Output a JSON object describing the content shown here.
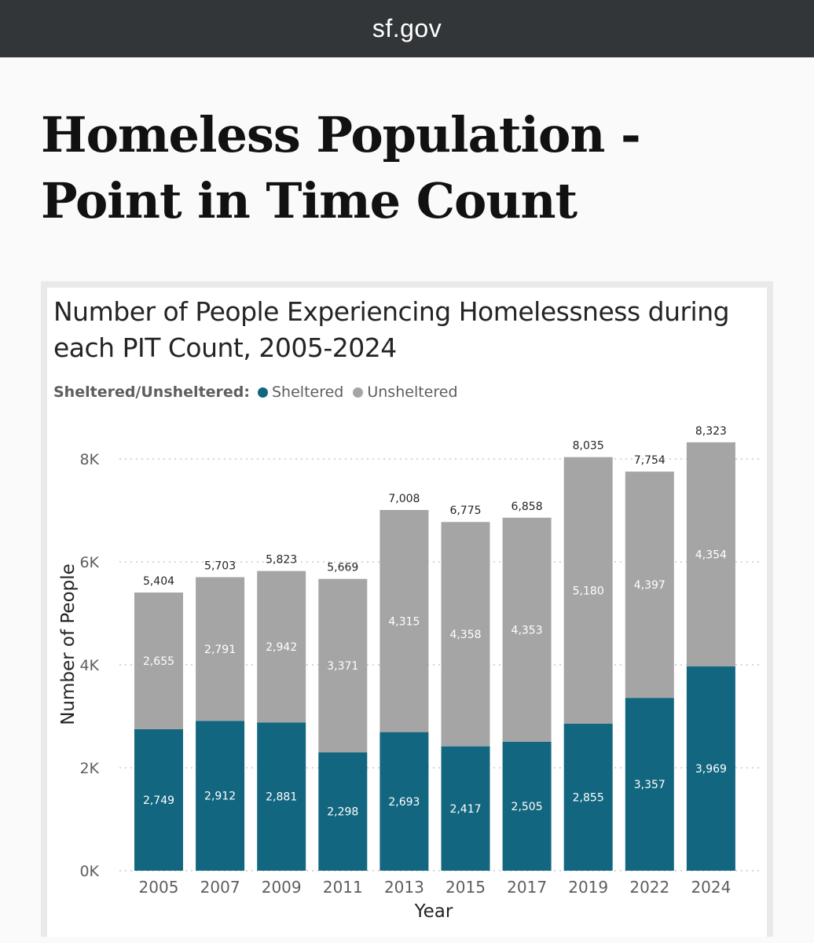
{
  "browser": {
    "url": "sf.gov"
  },
  "page": {
    "title": "Homeless Population - Point in Time Count"
  },
  "legend": {
    "title": "Sheltered/Unsheltered:",
    "items": [
      {
        "label": "Sheltered",
        "color": "#12667f"
      },
      {
        "label": "Unsheltered",
        "color": "#a5a5a5"
      }
    ]
  },
  "chart_data": {
    "type": "bar",
    "stacked": true,
    "title": "Number of People Experiencing Homelessness during each PIT Count, 2005-2024",
    "xlabel": "Year",
    "ylabel": "Number of People",
    "categories": [
      "2005",
      "2007",
      "2009",
      "2011",
      "2013",
      "2015",
      "2017",
      "2019",
      "2022",
      "2024"
    ],
    "series": [
      {
        "name": "Sheltered",
        "color": "#12667f",
        "values": [
          2749,
          2912,
          2881,
          2298,
          2693,
          2417,
          2505,
          2855,
          3357,
          3969
        ]
      },
      {
        "name": "Unsheltered",
        "color": "#a5a5a5",
        "values": [
          2655,
          2791,
          2942,
          3371,
          4315,
          4358,
          4353,
          5180,
          4397,
          4354
        ]
      }
    ],
    "totals": [
      5404,
      5703,
      5823,
      5669,
      7008,
      6775,
      6858,
      8035,
      7754,
      8323
    ],
    "yticks": [
      "0K",
      "2K",
      "4K",
      "6K",
      "8K"
    ],
    "ylim": [
      0,
      8000
    ],
    "grid": true,
    "legend_position": "top-left"
  }
}
